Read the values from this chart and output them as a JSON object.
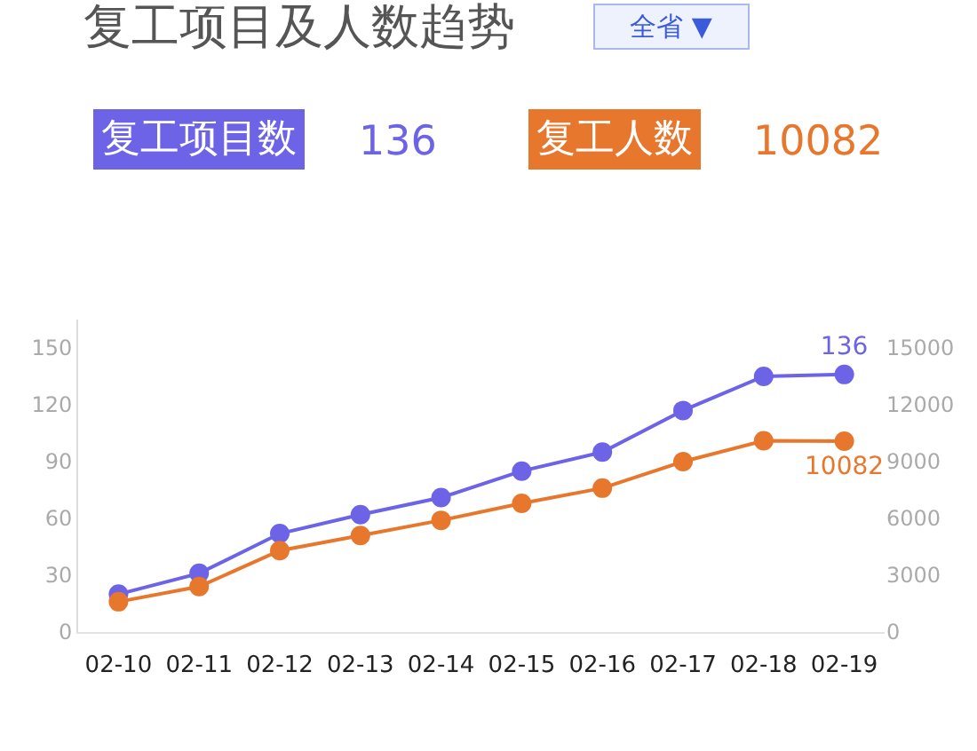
{
  "chart_data": {
    "type": "line",
    "title": "复工项目及人数趋势",
    "categories": [
      "02-10",
      "02-11",
      "02-12",
      "02-13",
      "02-14",
      "02-15",
      "02-16",
      "02-17",
      "02-18",
      "02-19"
    ],
    "series": [
      {
        "name": "复工项目数",
        "color": "#6c63e6",
        "values": [
          20,
          31,
          52,
          62,
          71,
          85,
          95,
          117,
          135,
          136
        ],
        "value_labels": [
          null,
          null,
          null,
          null,
          null,
          null,
          null,
          null,
          null,
          "136"
        ]
      },
      {
        "name": "复工人数",
        "color": "#e8772e",
        "axis": "y2",
        "values": [
          1600,
          2400,
          4300,
          5100,
          5900,
          6800,
          7600,
          9000,
          10100,
          10082
        ],
        "value_labels": [
          null,
          null,
          null,
          null,
          null,
          null,
          null,
          null,
          null,
          "10082"
        ]
      }
    ],
    "ylim": [
      0,
      165
    ],
    "yticks": [
      0,
      30,
      60,
      90,
      120,
      150
    ],
    "y2lim": [
      0,
      16500
    ],
    "y2ticks": [
      0,
      3000,
      6000,
      9000,
      12000,
      15000
    ],
    "legend": "top left",
    "marker": "circle",
    "line_style": "solid",
    "annotations": [
      "全省 ▼",
      "136",
      "10082"
    ]
  }
}
